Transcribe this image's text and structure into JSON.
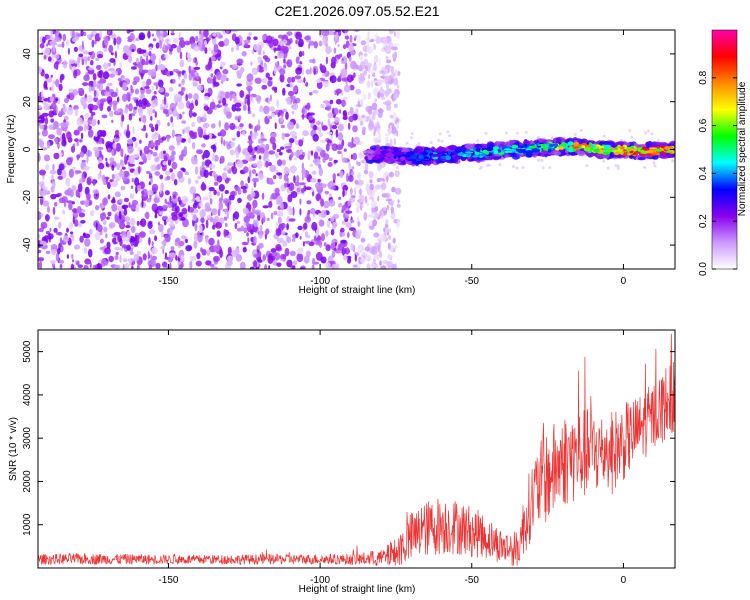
{
  "title": "C2E1.2026.097.05.52.E21",
  "chart_data": [
    {
      "type": "heatmap",
      "xlabel": "Height of straight line (km)",
      "ylabel": "Frequency (Hz)",
      "xlim": [
        -193,
        17
      ],
      "ylim": [
        -50,
        50
      ],
      "xticks": [
        -150,
        -100,
        -50,
        0
      ],
      "yticks": [
        -40,
        -20,
        0,
        20,
        40
      ],
      "colorbar": {
        "label": "Normalized spectral amplitude",
        "range": [
          0.0,
          1.0
        ],
        "ticks": [
          0.0,
          0.2,
          0.4,
          0.6,
          0.8
        ],
        "colors": [
          "#ffffff",
          "#cc99ff",
          "#8800ee",
          "#0000ff",
          "#00ffff",
          "#00ff00",
          "#ffff00",
          "#ff8800",
          "#ff0000",
          "#ff00aa"
        ]
      },
      "noise_region_end_km": -80,
      "signal": {
        "description_x": [
          -85,
          -70,
          -55,
          -45,
          -35,
          -25,
          -15,
          -5,
          5,
          15
        ],
        "frequency_hz": [
          -2,
          -3,
          -2,
          -1,
          0,
          1,
          1,
          0,
          -1,
          0
        ],
        "amplitude": [
          0.2,
          0.35,
          0.45,
          0.5,
          0.45,
          0.55,
          0.8,
          0.7,
          0.85,
          0.9
        ]
      }
    },
    {
      "type": "line",
      "xlabel": "Height of straight line (km)",
      "ylabel": "SNR (10 * v/v)",
      "xlim": [
        -193,
        17
      ],
      "ylim": [
        0,
        5500
      ],
      "xticks": [
        -150,
        -100,
        -50,
        0
      ],
      "yticks": [
        1000,
        2000,
        3000,
        4000,
        5000
      ],
      "series": [
        {
          "name": "SNR",
          "color": "#ee3333",
          "x": [
            -193,
            -180,
            -160,
            -140,
            -120,
            -100,
            -90,
            -80,
            -75,
            -70,
            -65,
            -60,
            -55,
            -50,
            -45,
            -40,
            -35,
            -32,
            -30,
            -28,
            -25,
            -20,
            -15,
            -10,
            -5,
            0,
            5,
            10,
            15,
            17
          ],
          "baseline": [
            200,
            210,
            200,
            195,
            200,
            205,
            200,
            220,
            350,
            700,
            900,
            1000,
            950,
            850,
            700,
            500,
            400,
            1200,
            1600,
            1900,
            2100,
            2500,
            2600,
            2700,
            2600,
            2900,
            3200,
            3500,
            3900,
            4000
          ],
          "amplitude": [
            120,
            130,
            120,
            110,
            120,
            120,
            130,
            200,
            350,
            600,
            650,
            700,
            650,
            600,
            500,
            400,
            450,
            800,
            900,
            1000,
            1100,
            1100,
            1100,
            1000,
            1000,
            900,
            800,
            800,
            900,
            900
          ]
        }
      ]
    }
  ]
}
